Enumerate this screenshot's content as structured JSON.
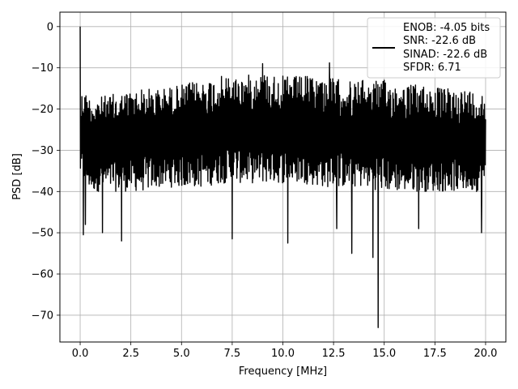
{
  "chart_data": {
    "type": "line",
    "title": "",
    "xlabel": "Frequency [MHz]",
    "ylabel": "PSD [dB]",
    "xlim": [
      -1.0,
      21.0
    ],
    "ylim": [
      -76.5,
      3.5
    ],
    "xticks": [
      0.0,
      2.5,
      5.0,
      7.5,
      10.0,
      12.5,
      15.0,
      17.5,
      20.0
    ],
    "xtick_labels": [
      "0.0",
      "2.5",
      "5.0",
      "7.5",
      "10.0",
      "12.5",
      "15.0",
      "17.5",
      "20.0"
    ],
    "yticks": [
      0,
      -10,
      -20,
      -30,
      -40,
      -50,
      -60,
      -70
    ],
    "ytick_labels": [
      "0",
      "−10",
      "−20",
      "−30",
      "−40",
      "−50",
      "−60",
      "−70"
    ],
    "grid": true,
    "legend_position": "upper right",
    "legend_lines": [
      "ENOB: -4.05 bits",
      "SNR: -22.6 dB",
      "SINAD: -22.6 dB",
      "SFDR: 6.71"
    ],
    "series": [
      {
        "color": "#000000",
        "envelope": {
          "x": [
            0.0,
            0.1,
            0.5,
            1.0,
            2.0,
            3.0,
            4.0,
            5.0,
            6.0,
            7.0,
            8.0,
            9.0,
            10.0,
            11.0,
            12.0,
            13.0,
            14.0,
            15.0,
            16.0,
            17.0,
            18.0,
            19.0,
            20.0
          ],
          "upper": [
            -20,
            -15,
            -17,
            -17,
            -16,
            -15,
            -15,
            -14,
            -13,
            -12,
            -12,
            -11,
            -12,
            -12,
            -12,
            -13,
            -13,
            -13,
            -14,
            -14,
            -15,
            -15,
            -16
          ],
          "lower": [
            -36,
            -37,
            -40,
            -40,
            -40,
            -40,
            -39,
            -39,
            -39,
            -38,
            -38,
            -38,
            -38,
            -38,
            -39,
            -39,
            -39,
            -40,
            -40,
            -40,
            -40,
            -40,
            -40
          ]
        },
        "peaks": [
          {
            "x": 0.0,
            "y": 0.0
          },
          {
            "x": 0.16,
            "y": -50.5
          },
          {
            "x": 0.25,
            "y": -48.0
          },
          {
            "x": 1.1,
            "y": -50.0
          },
          {
            "x": 2.05,
            "y": -52.0
          },
          {
            "x": 7.5,
            "y": -51.5
          },
          {
            "x": 10.25,
            "y": -52.5
          },
          {
            "x": 12.65,
            "y": -49.0
          },
          {
            "x": 13.4,
            "y": -55.0
          },
          {
            "x": 14.45,
            "y": -56.0
          },
          {
            "x": 14.7,
            "y": -73.0
          },
          {
            "x": 16.7,
            "y": -49.0
          },
          {
            "x": 19.8,
            "y": -50.0
          },
          {
            "x": 9.0,
            "y": -9.0
          },
          {
            "x": 12.3,
            "y": -8.8
          }
        ]
      }
    ]
  }
}
